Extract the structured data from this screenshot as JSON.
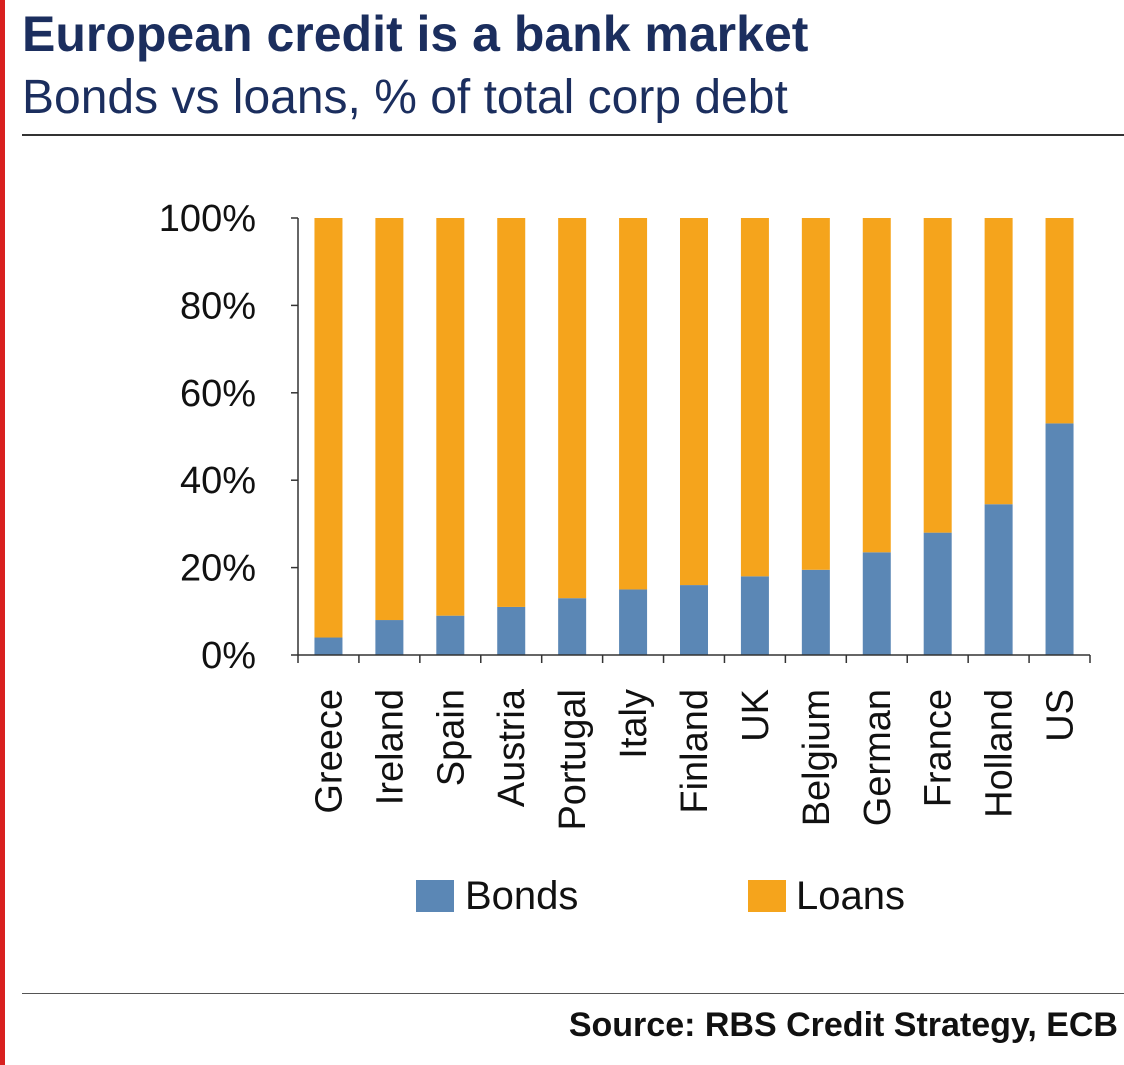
{
  "header": {
    "title": "European credit is a bank market",
    "subtitle": "Bonds vs loans, % of total corp debt"
  },
  "footer": {
    "source": "Source: RBS Credit Strategy, ECB"
  },
  "colors": {
    "bonds": "#5b87b5",
    "loans": "#f5a41c",
    "title": "#1b2e5e",
    "accent_bar": "#d8201f",
    "axis": "#333333"
  },
  "chart_data": {
    "type": "bar",
    "stacked": true,
    "categories": [
      "Greece",
      "Ireland",
      "Spain",
      "Austria",
      "Portugal",
      "Italy",
      "Finland",
      "UK",
      "Belgium",
      "German",
      "France",
      "Holland",
      "US"
    ],
    "series": [
      {
        "name": "Bonds",
        "values": [
          4,
          8,
          9,
          11,
          13,
          15,
          16,
          18,
          19.5,
          23.5,
          28,
          34.5,
          53
        ]
      },
      {
        "name": "Loans",
        "values": [
          96,
          92,
          91,
          89,
          87,
          85,
          84,
          82,
          80.5,
          76.5,
          72,
          65.5,
          47
        ]
      }
    ],
    "y_ticks": [
      "0%",
      "20%",
      "40%",
      "60%",
      "80%",
      "100%"
    ],
    "ylim": [
      0,
      100
    ],
    "grid": false,
    "legend": "bottom"
  }
}
